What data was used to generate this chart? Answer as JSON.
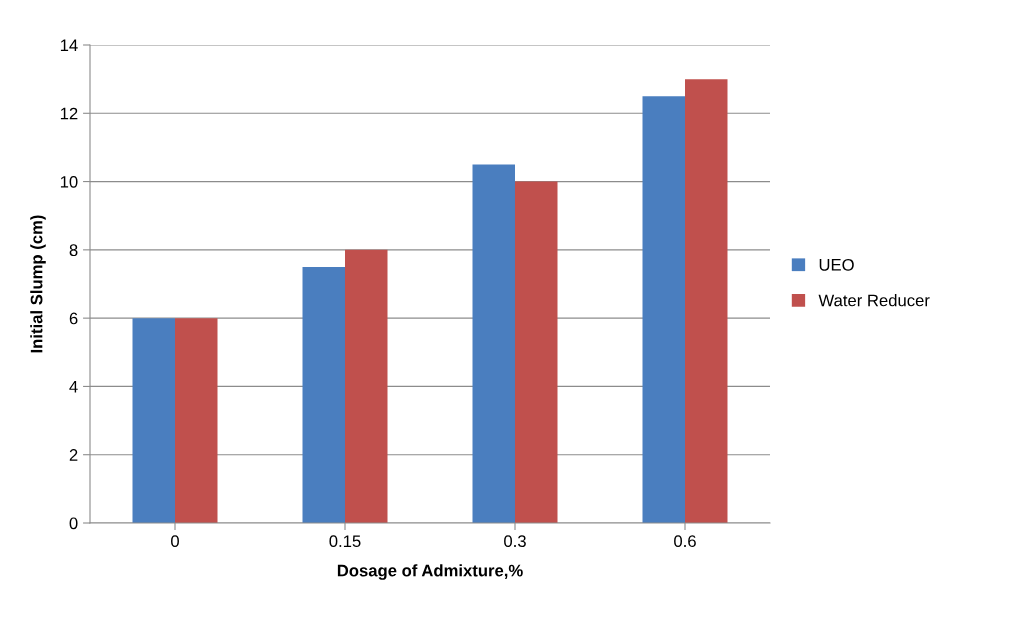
{
  "chart_data": {
    "type": "bar",
    "xlabel": "Dosage of Admixture,%",
    "ylabel": "Initial Slump (cm)",
    "categories": [
      "0",
      "0.15",
      "0.3",
      "0.6"
    ],
    "series": [
      {
        "name": "UEO",
        "color": "#4a7ebf",
        "values": [
          6,
          7.5,
          10.5,
          12.5
        ]
      },
      {
        "name": "Water Reducer",
        "color": "#c0504d",
        "values": [
          6,
          8,
          10,
          13
        ]
      }
    ],
    "ylim": [
      0,
      14
    ],
    "yticks": [
      0,
      2,
      4,
      6,
      8,
      10,
      12,
      14
    ],
    "grid": "y",
    "legend": "right"
  }
}
